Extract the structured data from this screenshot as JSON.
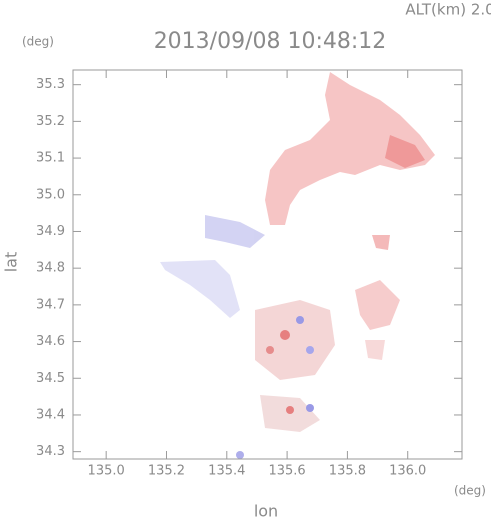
{
  "chart_data": {
    "type": "map",
    "title": "2013/09/08 10:48:12",
    "subtitle": "ALT(km) 2.0",
    "y_unit": "(deg)",
    "x_unit": "(deg)",
    "x_label": "lon",
    "y_label": "lat",
    "xlim": [
      134.89,
      136.18
    ],
    "ylim": [
      34.28,
      35.34
    ],
    "xticks": [
      {
        "value": 135.0,
        "label": "135.0"
      },
      135.2,
      135.4,
      135.6,
      135.8,
      {
        "value": 136.0,
        "label": "136.0"
      }
    ],
    "yticks": [
      34.3,
      34.4,
      34.5,
      34.6,
      34.7,
      34.8,
      34.9,
      {
        "value": 35.0,
        "label": "35.0"
      },
      35.1,
      35.2,
      35.3
    ]
  }
}
